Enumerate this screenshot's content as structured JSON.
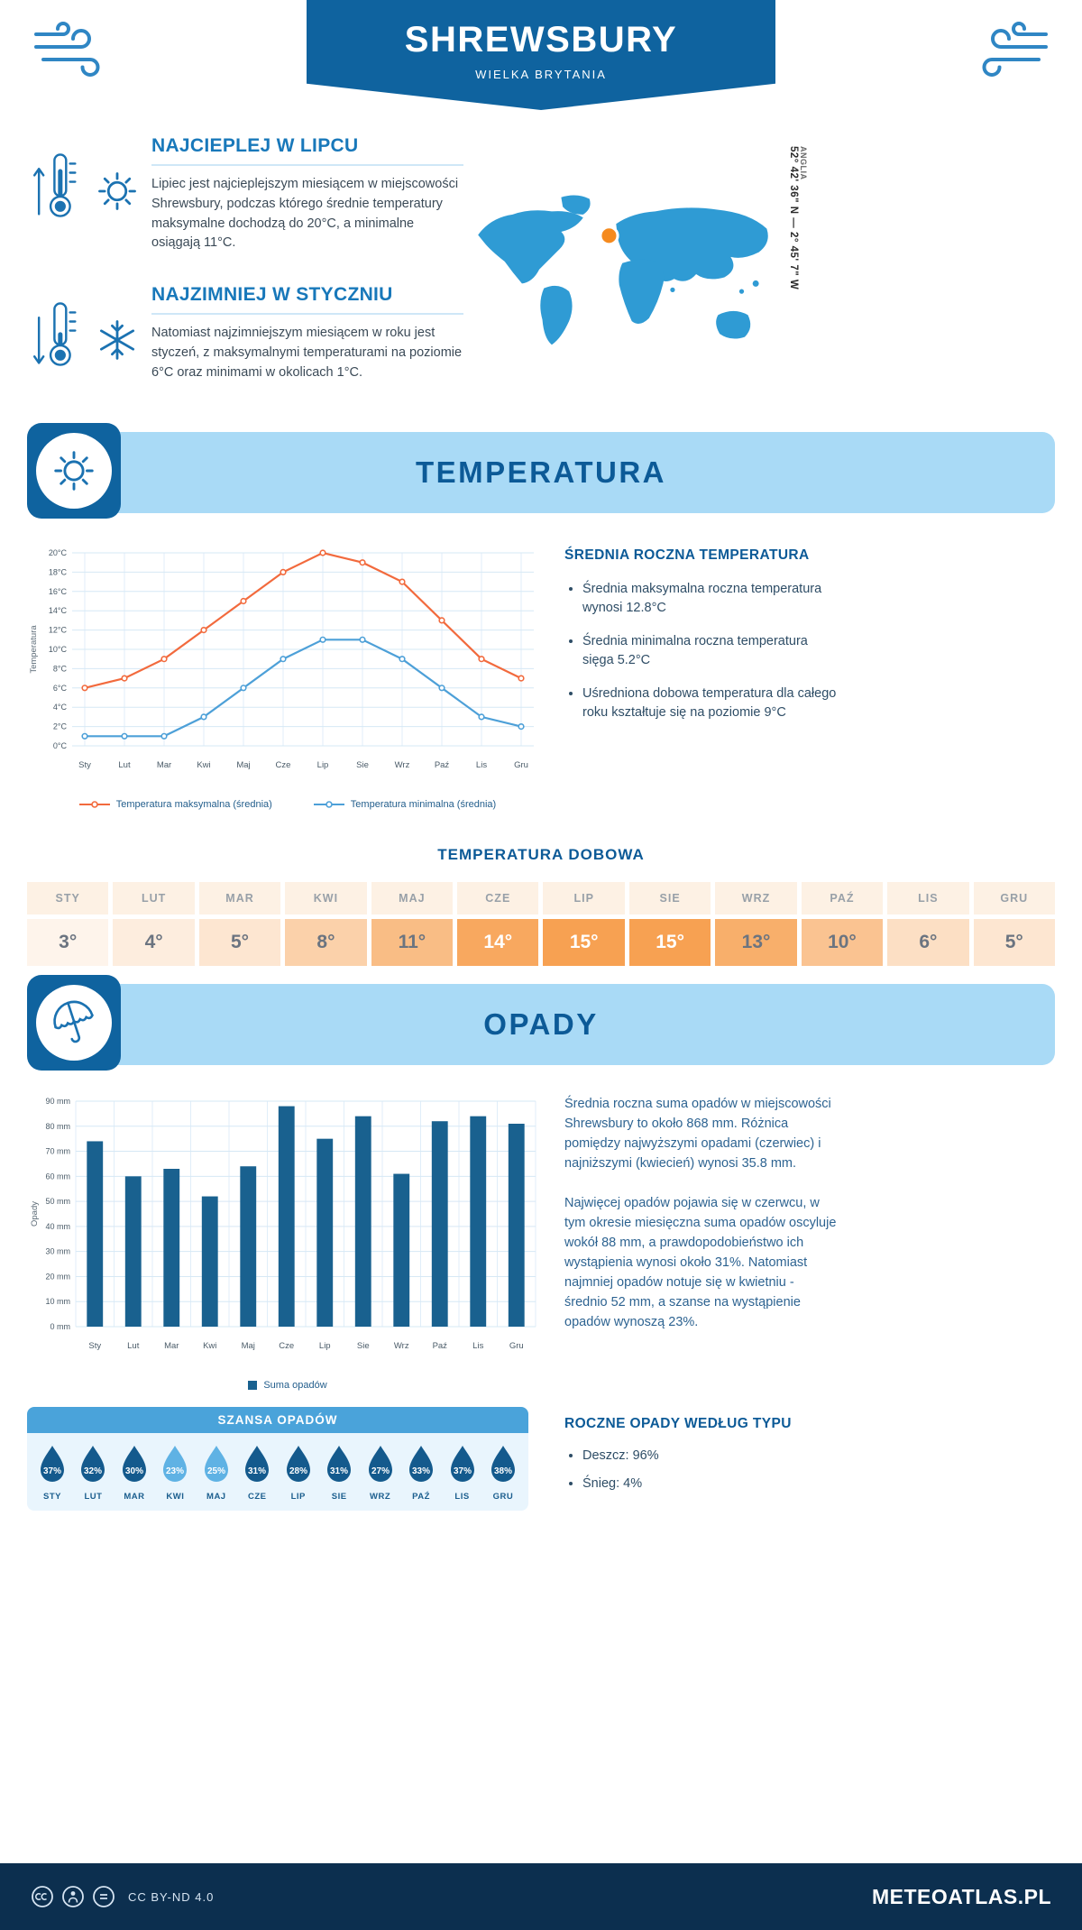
{
  "header": {
    "title": "SHREWSBURY",
    "subtitle": "WIELKA BRYTANIA"
  },
  "intro": {
    "warm": {
      "heading": "NAJCIEPLEJ W LIPCU",
      "text": "Lipiec jest najcieplejszym miesiącem w miejscowości Shrewsbury, podczas którego średnie temperatury maksymalne dochodzą do 20°C, a minimalne osiągają 11°C."
    },
    "cold": {
      "heading": "NAJZIMNIEJ W STYCZNIU",
      "text": "Natomiast najzimniejszym miesiącem w roku jest styczeń, z maksymalnymi temperaturami na poziomie 6°C oraz minimami w okolicach 1°C."
    },
    "map": {
      "coordinates": "52° 42' 36\" N — 2° 45' 7\" W",
      "region": "ANGLIA"
    }
  },
  "temperature": {
    "banner": "TEMPERATURA",
    "summary_heading": "ŚREDNIA ROCZNA TEMPERATURA",
    "bullets": [
      "Średnia maksymalna roczna temperatura wynosi 12.8°C",
      "Średnia minimalna roczna temperatura sięga 5.2°C",
      "Uśredniona dobowa temperatura dla całego roku kształtuje się na poziomie 9°C"
    ],
    "daily_heading": "TEMPERATURA DOBOWA",
    "daily": {
      "months": [
        "STY",
        "LUT",
        "MAR",
        "KWI",
        "MAJ",
        "CZE",
        "LIP",
        "SIE",
        "WRZ",
        "PAŹ",
        "LIS",
        "GRU"
      ],
      "values": [
        3,
        4,
        5,
        8,
        11,
        14,
        15,
        15,
        13,
        10,
        6,
        5
      ]
    }
  },
  "precipitation": {
    "banner": "OPADY",
    "paragraphs": [
      "Średnia roczna suma opadów w miejscowości Shrewsbury to około 868 mm. Różnica pomiędzy najwyższymi opadami (czerwiec) i najniższymi (kwiecień) wynosi 35.8 mm.",
      "Najwięcej opadów pojawia się w czerwcu, w tym okresie miesięczna suma opadów oscyluje wokół 88 mm, a prawdopodobieństwo ich wystąpienia wynosi około 31%. Natomiast najmniej opadów notuje się w kwietniu - średnio 52 mm, a szanse na wystąpienie opadów wynoszą 23%."
    ],
    "chance_heading": "SZANSA OPADÓW",
    "chance": {
      "months": [
        "STY",
        "LUT",
        "MAR",
        "KWI",
        "MAJ",
        "CZE",
        "LIP",
        "SIE",
        "WRZ",
        "PAŹ",
        "LIS",
        "GRU"
      ],
      "values": [
        37,
        32,
        30,
        23,
        25,
        31,
        28,
        31,
        27,
        33,
        37,
        38
      ]
    },
    "type_heading": "ROCZNE OPADY WEDŁUG TYPU",
    "type_bullets": [
      "Deszcz: 96%",
      "Śnieg: 4%"
    ]
  },
  "chart_data": [
    {
      "type": "line",
      "x": [
        "Sty",
        "Lut",
        "Mar",
        "Kwi",
        "Maj",
        "Cze",
        "Lip",
        "Sie",
        "Wrz",
        "Paź",
        "Lis",
        "Gru"
      ],
      "series": [
        {
          "name": "Temperatura maksymalna (średnia)",
          "color": "#f26a3d",
          "values": [
            6,
            7,
            9,
            12,
            15,
            18,
            20,
            19,
            17,
            13,
            9,
            7
          ]
        },
        {
          "name": "Temperatura minimalna (średnia)",
          "color": "#4da0d8",
          "values": [
            1,
            1,
            1,
            3,
            6,
            9,
            11,
            11,
            9,
            6,
            3,
            2
          ]
        }
      ],
      "ylabel": "Temperatura",
      "ylim": [
        0,
        20
      ],
      "ytick": 2,
      "yunit": "°C",
      "grid": true,
      "legend_position": "bottom"
    },
    {
      "type": "bar",
      "categories": [
        "Sty",
        "Lut",
        "Mar",
        "Kwi",
        "Maj",
        "Cze",
        "Lip",
        "Sie",
        "Wrz",
        "Paź",
        "Lis",
        "Gru"
      ],
      "values": [
        74,
        60,
        63,
        52,
        64,
        88,
        75,
        84,
        61,
        82,
        84,
        81
      ],
      "series_name": "Suma opadów",
      "color": "#19618f",
      "ylabel": "Opady",
      "ylim": [
        0,
        90
      ],
      "ytick": 10,
      "yunit": " mm",
      "grid": true,
      "legend_position": "bottom"
    }
  ],
  "colors": {
    "accent_dark": "#0f639f",
    "banner_light": "#a9daf6",
    "cell_base": "246,148,58",
    "drop_dark": "#145a8d",
    "drop_light": "#5fb2e4",
    "marker_orange": "#f58a1e"
  },
  "footer": {
    "license": "CC BY-ND 4.0",
    "site": "METEOATLAS.PL"
  }
}
